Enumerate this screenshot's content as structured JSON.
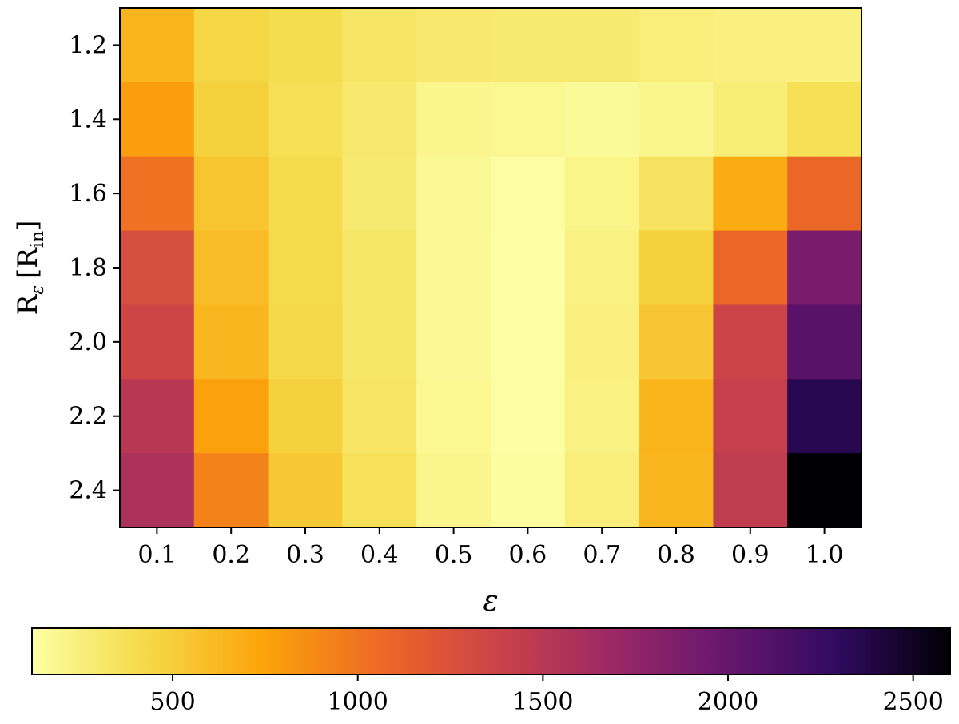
{
  "chart_data": {
    "type": "heatmap",
    "title": "",
    "xlabel": "ε",
    "ylabel_main": "R",
    "ylabel_sub": "ε",
    "ylabel_unit": "[R",
    "ylabel_unit_sub": "in",
    "ylabel_unit_close": "]",
    "x": [
      0.1,
      0.2,
      0.3,
      0.4,
      0.5,
      0.6,
      0.7,
      0.8,
      0.9,
      1.0
    ],
    "x_tick_labels": [
      "0.1",
      "0.2",
      "0.3",
      "0.4",
      "0.5",
      "0.6",
      "0.7",
      "0.8",
      "0.9",
      "1.0"
    ],
    "y": [
      1.2,
      1.4,
      1.6,
      1.8,
      2.0,
      2.2,
      2.4
    ],
    "y_tick_labels": [
      "1.2",
      "1.4",
      "1.6",
      "1.8",
      "2.0",
      "2.2",
      "2.4"
    ],
    "values": [
      [
        650,
        440,
        400,
        330,
        300,
        290,
        290,
        260,
        240,
        240
      ],
      [
        780,
        480,
        380,
        300,
        200,
        180,
        160,
        200,
        270,
        380
      ],
      [
        1020,
        550,
        410,
        290,
        170,
        130,
        210,
        350,
        700,
        1080
      ],
      [
        1280,
        600,
        420,
        320,
        170,
        120,
        230,
        480,
        1080,
        1890
      ],
      [
        1350,
        640,
        430,
        320,
        170,
        120,
        240,
        540,
        1370,
        2080
      ],
      [
        1500,
        760,
        480,
        330,
        180,
        130,
        230,
        650,
        1420,
        2350
      ],
      [
        1580,
        930,
        530,
        370,
        200,
        140,
        260,
        640,
        1450,
        2600
      ]
    ],
    "colormap": "inferno_r",
    "colorbar": {
      "vmin": 120,
      "vmax": 2600,
      "ticks": [
        500,
        1000,
        1500,
        2000,
        2500
      ],
      "tick_labels": [
        "500",
        "1000",
        "1500",
        "2000",
        "2500"
      ],
      "orientation": "horizontal",
      "placement": "bottom"
    },
    "grid": false,
    "legend": "none"
  }
}
